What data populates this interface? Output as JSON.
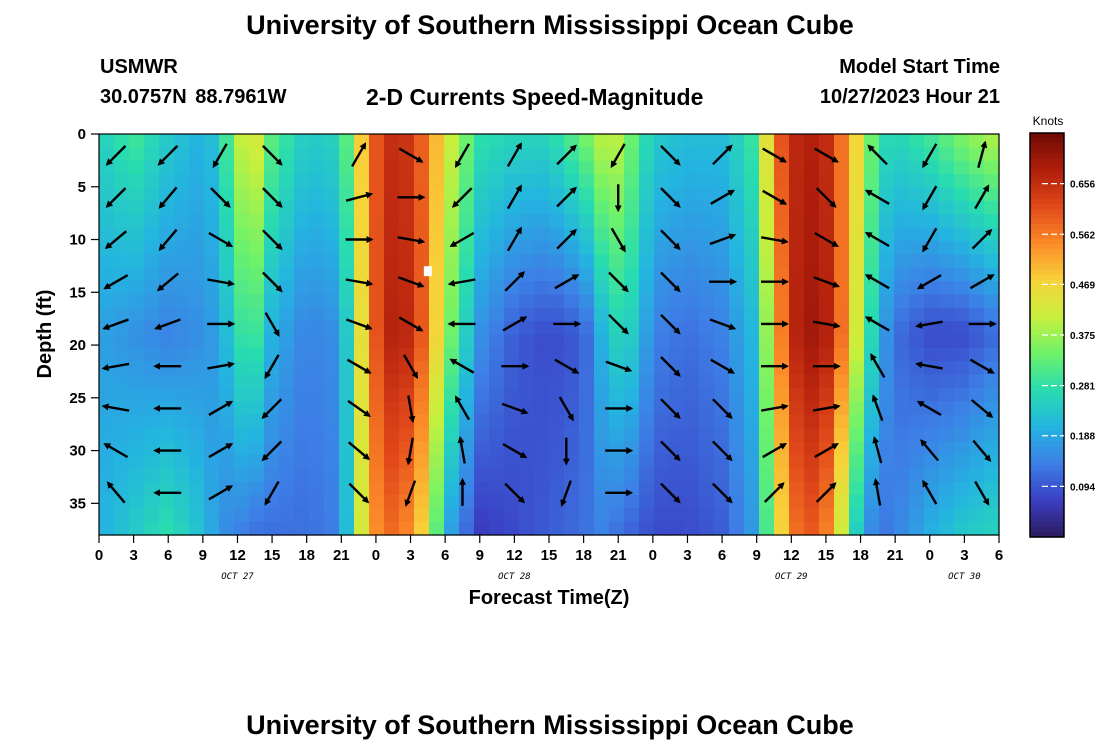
{
  "header": {
    "title": "University of Southern Mississippi Ocean Cube",
    "station_name": "USMWR",
    "station_coords": "30.0757N  88.7961W",
    "plot_title": "2-D Currents Speed-Magnitude",
    "model_start_label": "Model Start Time",
    "model_start_value": "10/27/2023 Hour 21"
  },
  "footer": {
    "title": "University of Southern Mississippi Ocean Cube"
  },
  "colors": {
    "colormap": [
      "#2d1a5e",
      "#3a3fc4",
      "#3d7fe6",
      "#24b4e0",
      "#28dcb0",
      "#6ef26a",
      "#c8f03c",
      "#f8d23a",
      "#fc8a28",
      "#e1481a",
      "#b01e0c",
      "#6e0a04"
    ],
    "arrows": "#000000"
  },
  "chart_data": {
    "type": "heatmap",
    "xlabel": "Forecast Time(Z)",
    "ylabel": "Depth (ft)",
    "x_hour_ticks": [
      "0",
      "3",
      "6",
      "9",
      "12",
      "15",
      "18",
      "21",
      "0",
      "3",
      "6",
      "9",
      "12",
      "15",
      "18",
      "21",
      "0",
      "3",
      "6",
      "9",
      "12",
      "15",
      "18",
      "21",
      "0",
      "3",
      "6"
    ],
    "date_labels": [
      {
        "label": "OCT 27",
        "hour": 12
      },
      {
        "label": "OCT 28",
        "hour": 36
      },
      {
        "label": "OCT 29",
        "hour": 60
      },
      {
        "label": "OCT 30",
        "hour": 75
      }
    ],
    "xlim_hours": [
      0,
      78
    ],
    "y_ticks": [
      0,
      5,
      10,
      15,
      20,
      25,
      30,
      35
    ],
    "ylim_depth_ft": [
      0,
      38
    ],
    "colorbar": {
      "title": "Knots",
      "ticks": [
        "0.656",
        "0.562",
        "0.469",
        "0.375",
        "0.281",
        "0.188",
        "0.094"
      ],
      "tick_values": [
        0.656,
        0.562,
        0.469,
        0.375,
        0.281,
        0.188,
        0.094
      ],
      "range": [
        0,
        0.75
      ]
    },
    "speed_columns": {
      "hours": [
        0,
        3,
        6,
        9,
        10.5,
        12,
        13.5,
        15,
        18,
        21,
        22.5,
        24,
        25.5,
        27,
        28.5,
        30,
        33,
        36,
        39,
        42,
        43.5,
        45,
        46.5,
        48,
        51,
        54,
        57,
        58.5,
        60,
        61.5,
        63,
        64.5,
        66,
        67.5,
        69,
        72,
        75,
        78
      ],
      "surface": [
        0.25,
        0.3,
        0.24,
        0.2,
        0.24,
        0.4,
        0.44,
        0.32,
        0.24,
        0.26,
        0.46,
        0.6,
        0.66,
        0.64,
        0.56,
        0.44,
        0.28,
        0.26,
        0.26,
        0.34,
        0.4,
        0.4,
        0.32,
        0.24,
        0.22,
        0.22,
        0.3,
        0.56,
        0.66,
        0.68,
        0.66,
        0.56,
        0.44,
        0.28,
        0.26,
        0.3,
        0.36,
        0.4
      ],
      "mid": [
        0.18,
        0.16,
        0.14,
        0.16,
        0.18,
        0.28,
        0.3,
        0.2,
        0.14,
        0.16,
        0.42,
        0.6,
        0.68,
        0.66,
        0.56,
        0.38,
        0.16,
        0.1,
        0.08,
        0.1,
        0.2,
        0.26,
        0.24,
        0.14,
        0.12,
        0.14,
        0.22,
        0.48,
        0.66,
        0.7,
        0.68,
        0.56,
        0.38,
        0.2,
        0.12,
        0.08,
        0.08,
        0.12
      ],
      "bottom": [
        0.2,
        0.24,
        0.28,
        0.22,
        0.16,
        0.14,
        0.12,
        0.12,
        0.12,
        0.14,
        0.4,
        0.54,
        0.58,
        0.54,
        0.44,
        0.2,
        0.06,
        0.08,
        0.1,
        0.12,
        0.14,
        0.12,
        0.1,
        0.08,
        0.08,
        0.1,
        0.18,
        0.4,
        0.56,
        0.6,
        0.56,
        0.4,
        0.2,
        0.12,
        0.14,
        0.2,
        0.24,
        0.26
      ]
    },
    "current_vectors": {
      "hours": [
        1.5,
        6,
        10.5,
        15,
        22.5,
        27,
        31.5,
        36,
        40.5,
        45,
        49.5,
        54,
        58.5,
        63,
        67.5,
        72,
        76.5
      ],
      "depths_ft": [
        2,
        6,
        10,
        14,
        18,
        22,
        26,
        30,
        34
      ],
      "directions_deg": [
        [
          225,
          225,
          210,
          135,
          30,
          120,
          210,
          30,
          45,
          210,
          135,
          45,
          120,
          120,
          315,
          210,
          15
        ],
        [
          225,
          220,
          135,
          135,
          75,
          90,
          225,
          30,
          45,
          180,
          135,
          60,
          120,
          135,
          300,
          210,
          30
        ],
        [
          230,
          220,
          120,
          135,
          90,
          100,
          240,
          30,
          45,
          150,
          135,
          70,
          100,
          120,
          300,
          210,
          45
        ],
        [
          240,
          230,
          100,
          135,
          100,
          110,
          260,
          45,
          60,
          135,
          135,
          90,
          90,
          110,
          300,
          240,
          60
        ],
        [
          250,
          250,
          90,
          150,
          110,
          120,
          270,
          60,
          90,
          135,
          135,
          110,
          90,
          100,
          300,
          260,
          90
        ],
        [
          260,
          270,
          80,
          210,
          120,
          150,
          300,
          90,
          120,
          110,
          135,
          120,
          90,
          90,
          330,
          280,
          120
        ],
        [
          280,
          270,
          60,
          225,
          125,
          170,
          330,
          110,
          150,
          90,
          135,
          135,
          80,
          80,
          340,
          300,
          130
        ],
        [
          300,
          270,
          60,
          225,
          130,
          190,
          350,
          120,
          180,
          90,
          135,
          135,
          60,
          60,
          345,
          320,
          140
        ],
        [
          320,
          270,
          60,
          210,
          135,
          200,
          360,
          135,
          200,
          90,
          135,
          135,
          45,
          45,
          350,
          330,
          150
        ]
      ]
    },
    "marker": {
      "hour": 28.5,
      "depth_ft": 13
    }
  }
}
